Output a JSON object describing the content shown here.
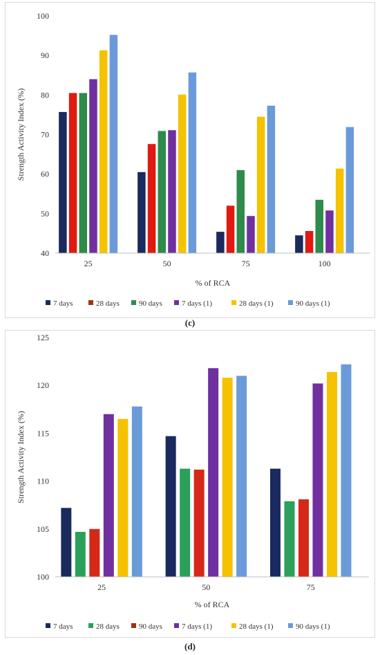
{
  "colors": {
    "7 days": "#1a2a5e",
    "28 days": "#9e3212",
    "90 days": "#2e8b4b",
    "7 days (1)": "#7030a0",
    "28 days (1)": "#f5c200",
    "90 days (1)": "#6a9bd8",
    "28 days d": "#2aa05a",
    "90 days d": "#d62818"
  },
  "chart_data": [
    {
      "type": "bar",
      "caption": "(c)",
      "xlabel": "% of RCA",
      "ylabel": "Strength Activity Index (%)",
      "ylim": [
        40,
        100
      ],
      "yticks": [
        40,
        50,
        60,
        70,
        80,
        90,
        100
      ],
      "grid": false,
      "legend": "bottom",
      "categories": [
        "25",
        "50",
        "75",
        "100"
      ],
      "series": [
        {
          "name": "7 days",
          "color": "#1a2a5e",
          "values": [
            75.7,
            60.5,
            45.4,
            44.5
          ]
        },
        {
          "name": "28 days",
          "color": "#e01a10",
          "legend_color": "#9e3212",
          "values": [
            80.5,
            67.6,
            52.0,
            45.6
          ]
        },
        {
          "name": "90 days",
          "color": "#2e8b4b",
          "values": [
            80.5,
            70.9,
            61.0,
            53.5
          ]
        },
        {
          "name": "7 days (1)",
          "color": "#7030a0",
          "values": [
            84.0,
            71.1,
            49.4,
            50.8
          ]
        },
        {
          "name": "28 days (1)",
          "color": "#f5c200",
          "values": [
            91.3,
            80.1,
            74.5,
            61.4
          ]
        },
        {
          "name": "90 days (1)",
          "color": "#6a9bd8",
          "values": [
            95.2,
            85.7,
            77.3,
            71.9
          ]
        }
      ]
    },
    {
      "type": "bar",
      "caption": "(d)",
      "xlabel": "% of RCA",
      "ylabel": "Strength Activity Index (%)",
      "ylim": [
        100,
        125
      ],
      "yticks": [
        100,
        105,
        110,
        115,
        120,
        125
      ],
      "grid": false,
      "legend": "bottom",
      "categories": [
        "25",
        "50",
        "75"
      ],
      "series": [
        {
          "name": "7 days",
          "color": "#1a2a5e",
          "values": [
            107.2,
            114.7,
            111.3
          ]
        },
        {
          "name": "28 days",
          "color": "#2aa05a",
          "values": [
            104.7,
            111.3,
            107.9
          ]
        },
        {
          "name": "90 days",
          "color": "#d62818",
          "legend_color": "#9e3212",
          "values": [
            105.0,
            111.2,
            108.1
          ]
        },
        {
          "name": "7 days (1)",
          "color": "#7030a0",
          "values": [
            117.0,
            121.8,
            120.2
          ]
        },
        {
          "name": "28 days (1)",
          "color": "#f5c200",
          "values": [
            116.5,
            120.8,
            121.4
          ]
        },
        {
          "name": "90 days (1)",
          "color": "#6a9bd8",
          "values": [
            117.8,
            121.0,
            122.2
          ]
        }
      ]
    }
  ]
}
